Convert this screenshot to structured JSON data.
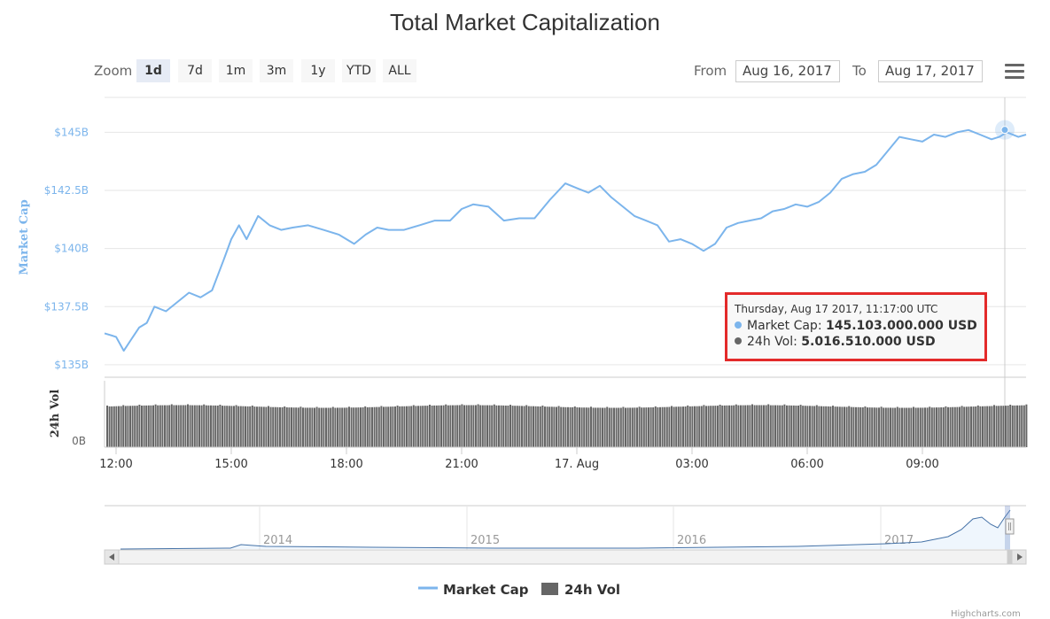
{
  "chart_data": {
    "type": "line",
    "title": "Total Market Capitalization",
    "ylabel": "Market Cap",
    "ylabel2": "24h Vol",
    "ylim": [
      134500000000,
      146500000000
    ],
    "yticks": [
      "$135B",
      "$137.5B",
      "$140B",
      "$142.5B",
      "$145B"
    ],
    "yticks_vol": [
      "0B"
    ],
    "xticks": [
      "12:00",
      "15:00",
      "18:00",
      "21:00",
      "17. Aug",
      "03:00",
      "06:00",
      "09:00"
    ],
    "x_range_hours": [
      11.7,
      35.7
    ],
    "series": [
      {
        "name": "Market Cap",
        "color": "#7cb5ec",
        "x": [
          11.7,
          12.0,
          12.2,
          12.4,
          12.6,
          12.8,
          13.0,
          13.3,
          13.6,
          13.9,
          14.2,
          14.5,
          14.8,
          15.0,
          15.2,
          15.4,
          15.7,
          16.0,
          16.3,
          16.6,
          17.0,
          17.4,
          17.8,
          18.2,
          18.5,
          18.8,
          19.1,
          19.5,
          19.9,
          20.3,
          20.7,
          21.0,
          21.3,
          21.7,
          22.1,
          22.5,
          22.9,
          23.3,
          23.7,
          24.0,
          24.3,
          24.6,
          24.9,
          25.2,
          25.5,
          25.8,
          26.1,
          26.4,
          26.7,
          27.0,
          27.3,
          27.6,
          27.9,
          28.2,
          28.5,
          28.8,
          29.1,
          29.4,
          29.7,
          30.0,
          30.3,
          30.6,
          30.9,
          31.2,
          31.5,
          31.8,
          32.1,
          32.4,
          32.7,
          33.0,
          33.3,
          33.6,
          33.9,
          34.2,
          34.5,
          34.8,
          35.0,
          35.2,
          35.5,
          35.7
        ],
        "values": [
          136.35,
          136.2,
          135.6,
          136.1,
          136.6,
          136.8,
          137.5,
          137.3,
          137.7,
          138.1,
          137.9,
          138.2,
          139.5,
          140.4,
          141.0,
          140.4,
          141.4,
          141.0,
          140.8,
          140.9,
          141.0,
          140.8,
          140.6,
          140.2,
          140.6,
          140.9,
          140.8,
          140.8,
          141.0,
          141.2,
          141.2,
          141.7,
          141.9,
          141.8,
          141.2,
          141.3,
          141.3,
          142.1,
          142.8,
          142.6,
          142.4,
          142.7,
          142.2,
          141.8,
          141.4,
          141.2,
          141.0,
          140.3,
          140.4,
          140.2,
          139.9,
          140.2,
          140.9,
          141.1,
          141.2,
          141.3,
          141.6,
          141.7,
          141.9,
          141.8,
          142.0,
          142.4,
          143.0,
          143.2,
          143.3,
          143.6,
          144.2,
          144.8,
          144.7,
          144.6,
          144.9,
          144.8,
          145.0,
          145.1,
          144.9,
          144.7,
          144.8,
          145.0,
          144.8,
          144.9
        ]
      },
      {
        "name": "24h Vol",
        "color": "#666666"
      }
    ],
    "navigator": {
      "labels": [
        "2014",
        "2015",
        "2016",
        "2017"
      ]
    },
    "zoom": {
      "label": "Zoom",
      "buttons": [
        "1d",
        "7d",
        "1m",
        "3m",
        "1y",
        "YTD",
        "ALL"
      ],
      "active": "1d"
    },
    "range": {
      "from_label": "From",
      "from": "Aug 16, 2017",
      "to_label": "To",
      "to": "Aug 17, 2017"
    },
    "tooltip": {
      "date": "Thursday, Aug 17 2017, 11:17:00 UTC",
      "mcap_label": "Market Cap:",
      "mcap_value": "145.103.000.000 USD",
      "vol_label": "24h Vol:",
      "vol_value": "5.016.510.000 USD",
      "mcap_color": "#7cb5ec",
      "vol_color": "#666666"
    },
    "legend": {
      "mcap": "Market Cap",
      "vol": "24h Vol"
    },
    "credit": "Highcharts.com"
  }
}
